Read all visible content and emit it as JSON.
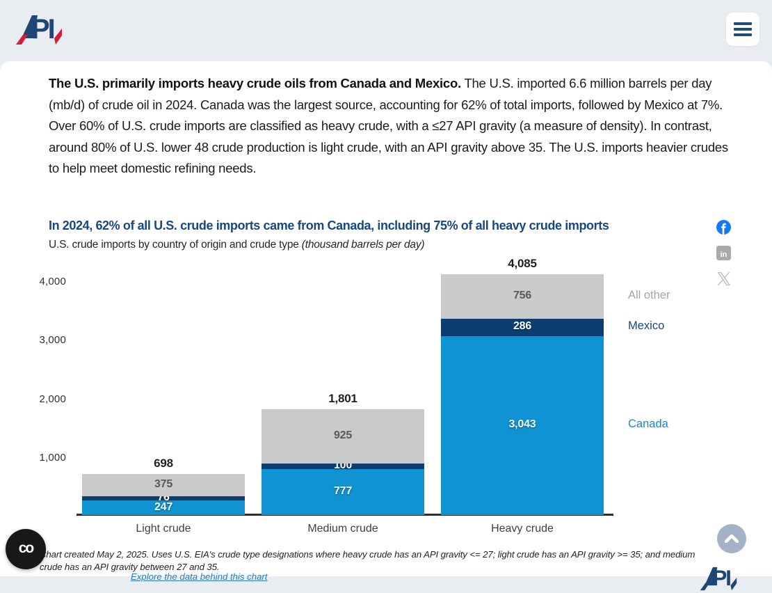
{
  "header": {
    "brand": "API"
  },
  "intro": {
    "lead_bold": "The U.S. primarily imports heavy crude oils from Canada and Mexico.",
    "body_text": " The U.S. imported 6.6 million barrels per day (mb/d) of crude oil in 2024. Canada was the largest source, accounting for 62% of total imports, followed by Mexico at 7%. Over 60% of U.S. crude imports are classified as heavy crude, with a ≤27 API gravity (a measure of density). In contrast, around 80% of U.S. lower 48 crude production is light crude, with an API gravity above 35. The U.S. imports heavier crudes to help meet domestic refining needs."
  },
  "chart_data": {
    "type": "bar",
    "stacked": true,
    "title": "In 2024, 62% of all U.S. crude imports came from Canada, including 75% of all heavy crude imports",
    "subtitle": "U.S. crude imports by country of origin and crude type ",
    "subtitle_note": "(thousand barrels per day)",
    "categories": [
      "Light crude",
      "Medium crude",
      "Heavy crude"
    ],
    "series": [
      {
        "name": "Canada",
        "color": "#0f93d2",
        "legend_color": "#128ccc",
        "value_label_style": "light",
        "values": [
          247,
          777,
          3043
        ]
      },
      {
        "name": "Mexico",
        "color": "#0b3e6f",
        "legend_color": "#16497d",
        "value_label_style": "light",
        "values": [
          76,
          100,
          286
        ]
      },
      {
        "name": "All other",
        "color": "#c9caca",
        "legend_color": "#a6a6a6",
        "value_label_style": "dark",
        "values": [
          375,
          925,
          756
        ]
      }
    ],
    "totals": [
      698,
      1801,
      4085
    ],
    "y_ticks": [
      1000,
      2000,
      3000,
      4000
    ],
    "ylim": [
      0,
      4300
    ],
    "grid": false,
    "legend_position": "right-of-last-bar"
  },
  "social": {
    "facebook_color": "#1877f2",
    "linkedin_color": "#a7a9ac",
    "x_color": "#b9bbbd"
  },
  "footnote": {
    "text": "Chart created May 2, 2025. Uses U.S. EIA's crude type designations where heavy crude has an API gravity <= 27; light crude has an API gravity >= 35; and medium crude has an API gravity between 27 and 35.",
    "clipped_link_text": "Explore the data behind this chart"
  }
}
